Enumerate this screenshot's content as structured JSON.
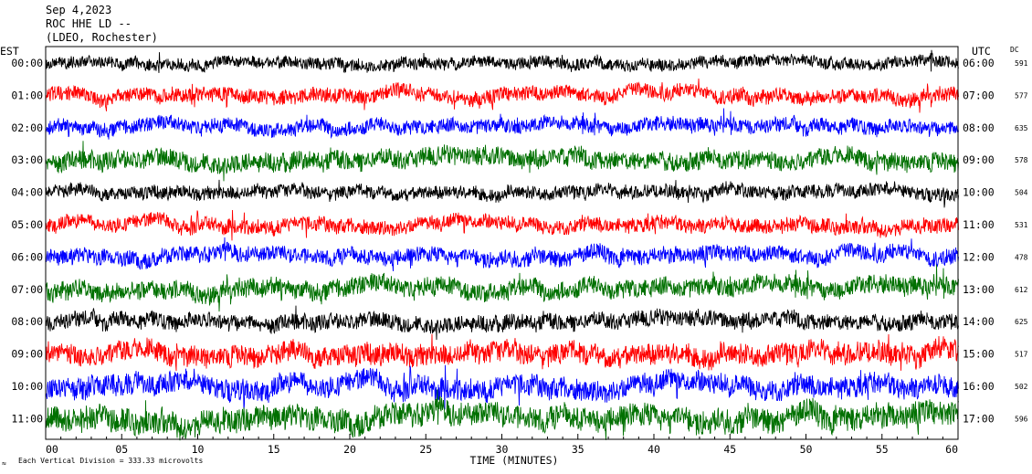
{
  "header": {
    "date": "Sep 4,2023",
    "station": "ROC HHE LD --",
    "network": "(LDEO, Rochester)"
  },
  "left_axis_title": "EST",
  "right_axis_title": "UTC",
  "dc_title": "DC",
  "colors": {
    "cycle": [
      "#000000",
      "#ff0000",
      "#0000ff",
      "#007000"
    ]
  },
  "chart_data": {
    "type": "line",
    "title": "",
    "xlabel": "TIME (MINUTES)",
    "ylabel": "",
    "xlim": [
      0,
      60
    ],
    "x_ticks": [
      "00",
      "05",
      "10",
      "15",
      "20",
      "25",
      "30",
      "35",
      "40",
      "45",
      "50",
      "55",
      "60"
    ],
    "series": [
      {
        "est": "00:00",
        "utc": "06:00",
        "dc": "591",
        "amplitude": 0.45,
        "color": "#000000"
      },
      {
        "est": "01:00",
        "utc": "07:00",
        "dc": "577",
        "amplitude": 0.55,
        "color": "#ff0000"
      },
      {
        "est": "02:00",
        "utc": "08:00",
        "dc": "635",
        "amplitude": 0.55,
        "color": "#0000ff"
      },
      {
        "est": "03:00",
        "utc": "09:00",
        "dc": "578",
        "amplitude": 0.7,
        "color": "#007000"
      },
      {
        "est": "04:00",
        "utc": "10:00",
        "dc": "504",
        "amplitude": 0.5,
        "color": "#000000"
      },
      {
        "est": "05:00",
        "utc": "11:00",
        "dc": "531",
        "amplitude": 0.55,
        "color": "#ff0000"
      },
      {
        "est": "06:00",
        "utc": "12:00",
        "dc": "478",
        "amplitude": 0.6,
        "color": "#0000ff"
      },
      {
        "est": "07:00",
        "utc": "13:00",
        "dc": "612",
        "amplitude": 0.7,
        "color": "#007000"
      },
      {
        "est": "08:00",
        "utc": "14:00",
        "dc": "625",
        "amplitude": 0.6,
        "color": "#000000"
      },
      {
        "est": "09:00",
        "utc": "15:00",
        "dc": "517",
        "amplitude": 0.8,
        "color": "#ff0000"
      },
      {
        "est": "10:00",
        "utc": "16:00",
        "dc": "502",
        "amplitude": 0.8,
        "color": "#0000ff"
      },
      {
        "est": "11:00",
        "utc": "17:00",
        "dc": "596",
        "amplitude": 0.9,
        "color": "#007000"
      }
    ]
  },
  "footer": {
    "symbol": "≈",
    "scale_note": "Each Vertical Division = 333.33 microvolts"
  }
}
